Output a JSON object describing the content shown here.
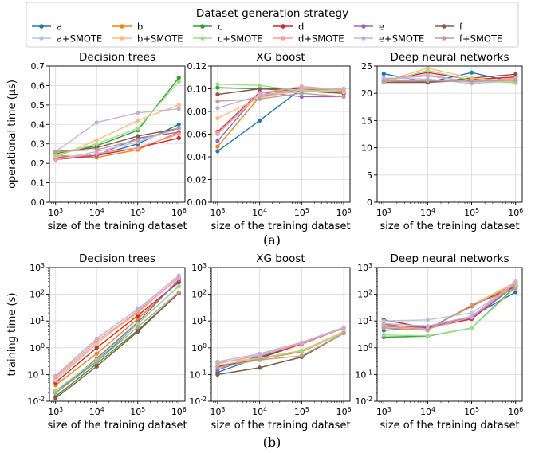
{
  "legend": {
    "title": "Dataset generation strategy",
    "placement": "top-center",
    "entries": [
      {
        "name": "a",
        "color": "#1f77b4"
      },
      {
        "name": "b",
        "color": "#ff7f0e"
      },
      {
        "name": "c",
        "color": "#2ca02c"
      },
      {
        "name": "d",
        "color": "#d62728"
      },
      {
        "name": "e",
        "color": "#9467bd"
      },
      {
        "name": "f",
        "color": "#8c564b"
      },
      {
        "name": "a+SMOTE",
        "color": "#aec7e8"
      },
      {
        "name": "b+SMOTE",
        "color": "#ffbb78"
      },
      {
        "name": "c+SMOTE",
        "color": "#98df8a"
      },
      {
        "name": "d+SMOTE",
        "color": "#ff9896"
      },
      {
        "name": "e+SMOTE",
        "color": "#c5b0d5"
      },
      {
        "name": "f+SMOTE",
        "color": "#c49c94"
      }
    ]
  },
  "captions": {
    "a": "(a)",
    "b": "(b)"
  },
  "chart_data": [
    {
      "id": "op-dt",
      "type": "line",
      "title": "Decision trees",
      "xlabel": "size of the training dataset",
      "ylabel": "operational time (μs)",
      "x": [
        1000,
        10000,
        100000,
        1000000
      ],
      "xscale": "log",
      "xticks": [
        "10^3",
        "10^4",
        "10^5",
        "10^6"
      ],
      "yscale": "linear",
      "ylim": [
        0,
        0.7
      ],
      "yticks": [
        "0.0",
        "0.1",
        "0.2",
        "0.3",
        "0.4",
        "0.5",
        "0.6",
        "0.7"
      ],
      "grid": true,
      "series": [
        {
          "name": "a",
          "values": [
            0.22,
            0.24,
            0.3,
            0.4
          ]
        },
        {
          "name": "b",
          "values": [
            0.24,
            0.23,
            0.27,
            0.36
          ]
        },
        {
          "name": "c",
          "values": [
            0.25,
            0.29,
            0.37,
            0.64
          ]
        },
        {
          "name": "d",
          "values": [
            0.22,
            0.24,
            0.28,
            0.33
          ]
        },
        {
          "name": "e",
          "values": [
            0.23,
            0.24,
            0.33,
            0.36
          ]
        },
        {
          "name": "f",
          "values": [
            0.26,
            0.28,
            0.34,
            0.38
          ]
        },
        {
          "name": "a+SMOTE",
          "values": [
            0.22,
            0.26,
            0.31,
            0.38
          ]
        },
        {
          "name": "b+SMOTE",
          "values": [
            0.23,
            0.32,
            0.42,
            0.5
          ]
        },
        {
          "name": "c+SMOTE",
          "values": [
            0.24,
            0.3,
            0.38,
            0.62
          ]
        },
        {
          "name": "d+SMOTE",
          "values": [
            0.22,
            0.25,
            0.28,
            0.35
          ]
        },
        {
          "name": "e+SMOTE",
          "values": [
            0.26,
            0.41,
            0.46,
            0.48
          ]
        },
        {
          "name": "f+SMOTE",
          "values": [
            0.26,
            0.27,
            0.32,
            0.38
          ]
        }
      ]
    },
    {
      "id": "op-xg",
      "type": "line",
      "title": "XG boost",
      "xlabel": "size of the training dataset",
      "ylabel": "",
      "x": [
        1000,
        10000,
        100000,
        1000000
      ],
      "xscale": "log",
      "xticks": [
        "10^3",
        "10^4",
        "10^5",
        "10^6"
      ],
      "yscale": "linear",
      "ylim": [
        0,
        0.12
      ],
      "yticks": [
        "0.00",
        "0.02",
        "0.04",
        "0.06",
        "0.08",
        "0.10",
        "0.12"
      ],
      "grid": true,
      "series": [
        {
          "name": "a",
          "values": [
            0.045,
            0.072,
            0.1,
            0.1
          ]
        },
        {
          "name": "b",
          "values": [
            0.049,
            0.093,
            0.1,
            0.098
          ]
        },
        {
          "name": "c",
          "values": [
            0.101,
            0.1,
            0.098,
            0.097
          ]
        },
        {
          "name": "d",
          "values": [
            0.062,
            0.097,
            0.098,
            0.096
          ]
        },
        {
          "name": "e",
          "values": [
            0.054,
            0.097,
            0.093,
            0.093
          ]
        },
        {
          "name": "f",
          "values": [
            0.095,
            0.1,
            0.1,
            0.096
          ]
        },
        {
          "name": "a+SMOTE",
          "values": [
            0.06,
            0.095,
            0.097,
            0.099
          ]
        },
        {
          "name": "b+SMOTE",
          "values": [
            0.074,
            0.092,
            0.099,
            0.097
          ]
        },
        {
          "name": "c+SMOTE",
          "values": [
            0.104,
            0.103,
            0.098,
            0.099
          ]
        },
        {
          "name": "d+SMOTE",
          "values": [
            0.061,
            0.096,
            0.102,
            0.099
          ]
        },
        {
          "name": "e+SMOTE",
          "values": [
            0.083,
            0.094,
            0.1,
            0.1
          ]
        },
        {
          "name": "f+SMOTE",
          "values": [
            0.089,
            0.091,
            0.096,
            0.093
          ]
        }
      ]
    },
    {
      "id": "op-dnn",
      "type": "line",
      "title": "Deep neural networks",
      "xlabel": "size of the training dataset",
      "ylabel": "",
      "x": [
        1000,
        10000,
        100000,
        1000000
      ],
      "xscale": "log",
      "xticks": [
        "10^3",
        "10^4",
        "10^5",
        "10^6"
      ],
      "yscale": "linear",
      "ylim": [
        0,
        25
      ],
      "yticks": [
        "0",
        "5",
        "10",
        "15",
        "20",
        "25"
      ],
      "grid": true,
      "series": [
        {
          "name": "a",
          "values": [
            23.6,
            22.0,
            23.8,
            22.0
          ]
        },
        {
          "name": "b",
          "values": [
            22.5,
            22.2,
            22.4,
            22.3
          ]
        },
        {
          "name": "c",
          "values": [
            22.0,
            22.2,
            22.6,
            22.0
          ]
        },
        {
          "name": "d",
          "values": [
            22.4,
            23.8,
            22.5,
            23.0
          ]
        },
        {
          "name": "e",
          "values": [
            22.3,
            22.0,
            22.4,
            22.5
          ]
        },
        {
          "name": "f",
          "values": [
            22.0,
            22.0,
            22.8,
            23.5
          ]
        },
        {
          "name": "a+SMOTE",
          "values": [
            22.8,
            22.6,
            21.8,
            22.3
          ]
        },
        {
          "name": "b+SMOTE",
          "values": [
            22.2,
            24.6,
            22.8,
            22.0
          ]
        },
        {
          "name": "c+SMOTE",
          "values": [
            22.0,
            24.2,
            22.4,
            21.9
          ]
        },
        {
          "name": "d+SMOTE",
          "values": [
            22.6,
            23.2,
            22.1,
            22.8
          ]
        },
        {
          "name": "e+SMOTE",
          "values": [
            22.6,
            23.4,
            22.0,
            22.6
          ]
        },
        {
          "name": "f+SMOTE",
          "values": [
            22.2,
            22.3,
            22.2,
            22.4
          ]
        }
      ]
    },
    {
      "id": "tr-dt",
      "type": "line",
      "title": "Decision trees",
      "xlabel": "size of the training dataset",
      "ylabel": "training time (s)",
      "x": [
        1000,
        10000,
        100000,
        1000000
      ],
      "xscale": "log",
      "xticks": [
        "10^3",
        "10^4",
        "10^5",
        "10^6"
      ],
      "yscale": "log",
      "ylim": [
        0.01,
        1000
      ],
      "yticks": [
        "10^-2",
        "10^-1",
        "10^0",
        "10^1",
        "10^2",
        "10^3"
      ],
      "grid": true,
      "series": [
        {
          "name": "a",
          "values": [
            0.025,
            0.3,
            8,
            200
          ]
        },
        {
          "name": "b",
          "values": [
            0.04,
            0.6,
            12,
            300
          ]
        },
        {
          "name": "c",
          "values": [
            0.015,
            0.25,
            4.5,
            110
          ]
        },
        {
          "name": "d",
          "values": [
            0.05,
            1.0,
            16,
            280
          ]
        },
        {
          "name": "e",
          "values": [
            0.02,
            0.4,
            9,
            350
          ]
        },
        {
          "name": "f",
          "values": [
            0.013,
            0.2,
            4,
            110
          ]
        },
        {
          "name": "a+SMOTE",
          "values": [
            0.06,
            1.4,
            25,
            400
          ]
        },
        {
          "name": "b+SMOTE",
          "values": [
            0.07,
            1.5,
            20,
            450
          ]
        },
        {
          "name": "c+SMOTE",
          "values": [
            0.025,
            0.35,
            8,
            200
          ]
        },
        {
          "name": "d+SMOTE",
          "values": [
            0.08,
            1.8,
            22,
            420
          ]
        },
        {
          "name": "e+SMOTE",
          "values": [
            0.09,
            2.2,
            28,
            500
          ]
        },
        {
          "name": "f+SMOTE",
          "values": [
            0.02,
            0.3,
            6,
            120
          ]
        }
      ]
    },
    {
      "id": "tr-xg",
      "type": "line",
      "title": "XG boost",
      "xlabel": "size of the training dataset",
      "ylabel": "",
      "x": [
        1000,
        10000,
        100000,
        1000000
      ],
      "xscale": "log",
      "xticks": [
        "10^3",
        "10^4",
        "10^5",
        "10^6"
      ],
      "yscale": "log",
      "ylim": [
        0.01,
        1000
      ],
      "yticks": [
        "10^-2",
        "10^-1",
        "10^0",
        "10^1",
        "10^2",
        "10^3"
      ],
      "grid": true,
      "series": [
        {
          "name": "a",
          "values": [
            0.12,
            0.45,
            1.4,
            5.5
          ]
        },
        {
          "name": "b",
          "values": [
            0.2,
            0.38,
            0.7,
            3.8
          ]
        },
        {
          "name": "c",
          "values": [
            0.1,
            0.18,
            0.45,
            3.5
          ]
        },
        {
          "name": "d",
          "values": [
            0.2,
            0.4,
            1.4,
            5.5
          ]
        },
        {
          "name": "e",
          "values": [
            0.15,
            0.5,
            1.5,
            5.4
          ]
        },
        {
          "name": "f",
          "values": [
            0.1,
            0.18,
            0.45,
            3.5
          ]
        },
        {
          "name": "a+SMOTE",
          "values": [
            0.25,
            0.55,
            1.5,
            5.5
          ]
        },
        {
          "name": "b+SMOTE",
          "values": [
            0.28,
            0.4,
            0.8,
            4.0
          ]
        },
        {
          "name": "c+SMOTE",
          "values": [
            0.22,
            0.4,
            0.75,
            3.6
          ]
        },
        {
          "name": "d+SMOTE",
          "values": [
            0.27,
            0.5,
            1.45,
            5.6
          ]
        },
        {
          "name": "e+SMOTE",
          "values": [
            0.3,
            0.6,
            1.6,
            5.8
          ]
        },
        {
          "name": "f+SMOTE",
          "values": [
            0.18,
            0.35,
            0.5,
            3.5
          ]
        }
      ]
    },
    {
      "id": "tr-dnn",
      "type": "line",
      "title": "Deep neural networks",
      "xlabel": "size of the training dataset",
      "ylabel": "",
      "x": [
        1000,
        10000,
        100000,
        1000000
      ],
      "xscale": "log",
      "xticks": [
        "10^3",
        "10^4",
        "10^5",
        "10^6"
      ],
      "yscale": "log",
      "ylim": [
        0.01,
        1000
      ],
      "yticks": [
        "10^-2",
        "10^-1",
        "10^0",
        "10^1",
        "10^2",
        "10^3"
      ],
      "grid": true,
      "series": [
        {
          "name": "a",
          "values": [
            4.5,
            5.5,
            15,
            120
          ]
        },
        {
          "name": "b",
          "values": [
            6.5,
            5.0,
            35,
            250
          ]
        },
        {
          "name": "c",
          "values": [
            2.5,
            2.7,
            5.5,
            200
          ]
        },
        {
          "name": "d",
          "values": [
            11,
            5.5,
            12,
            220
          ]
        },
        {
          "name": "e",
          "values": [
            6.0,
            6.0,
            13,
            220
          ]
        },
        {
          "name": "f",
          "values": [
            7.5,
            5.0,
            38,
            200
          ]
        },
        {
          "name": "a+SMOTE",
          "values": [
            10,
            11,
            20,
            250
          ]
        },
        {
          "name": "b+SMOTE",
          "values": [
            6.0,
            4.5,
            40,
            280
          ]
        },
        {
          "name": "c+SMOTE",
          "values": [
            3.0,
            2.8,
            5.5,
            180
          ]
        },
        {
          "name": "d+SMOTE",
          "values": [
            7.0,
            5.0,
            14,
            260
          ]
        },
        {
          "name": "e+SMOTE",
          "values": [
            8.0,
            6.5,
            15,
            300
          ]
        },
        {
          "name": "f+SMOTE",
          "values": [
            5.5,
            4.5,
            40,
            160
          ]
        }
      ]
    }
  ]
}
